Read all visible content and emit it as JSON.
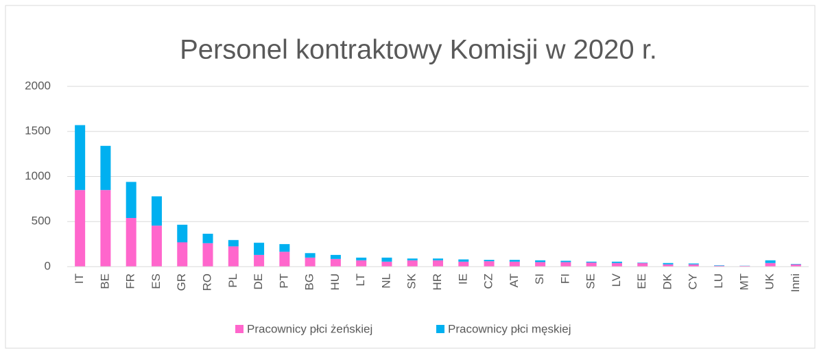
{
  "chart_data": {
    "type": "bar",
    "stacked": true,
    "title": "Personel kontraktowy Komisji w 2020 r.",
    "categories": [
      "IT",
      "BE",
      "FR",
      "ES",
      "GR",
      "RO",
      "PL",
      "DE",
      "PT",
      "BG",
      "HU",
      "LT",
      "NL",
      "SK",
      "HR",
      "IE",
      "CZ",
      "AT",
      "SI",
      "FI",
      "SE",
      "LV",
      "EE",
      "DK",
      "CY",
      "LU",
      "MT",
      "UK",
      "Inni"
    ],
    "series": [
      {
        "name": "Pracownicy płci żeńskiej",
        "color": "#ff66cc",
        "values": [
          850,
          850,
          540,
          455,
          270,
          260,
          225,
          130,
          165,
          100,
          85,
          70,
          55,
          70,
          70,
          55,
          60,
          55,
          50,
          50,
          45,
          40,
          40,
          25,
          25,
          10,
          8,
          40,
          25
        ]
      },
      {
        "name": "Pracownicy płci męskiej",
        "color": "#00b0f0",
        "values": [
          720,
          490,
          400,
          325,
          195,
          105,
          70,
          135,
          85,
          50,
          45,
          30,
          45,
          20,
          20,
          25,
          15,
          20,
          20,
          15,
          10,
          15,
          5,
          15,
          10,
          5,
          2,
          30,
          5
        ]
      }
    ],
    "ylim": [
      0,
      2000
    ],
    "yticks": [
      0,
      500,
      1000,
      1500,
      2000
    ],
    "grid": true,
    "legend": "bottom"
  }
}
